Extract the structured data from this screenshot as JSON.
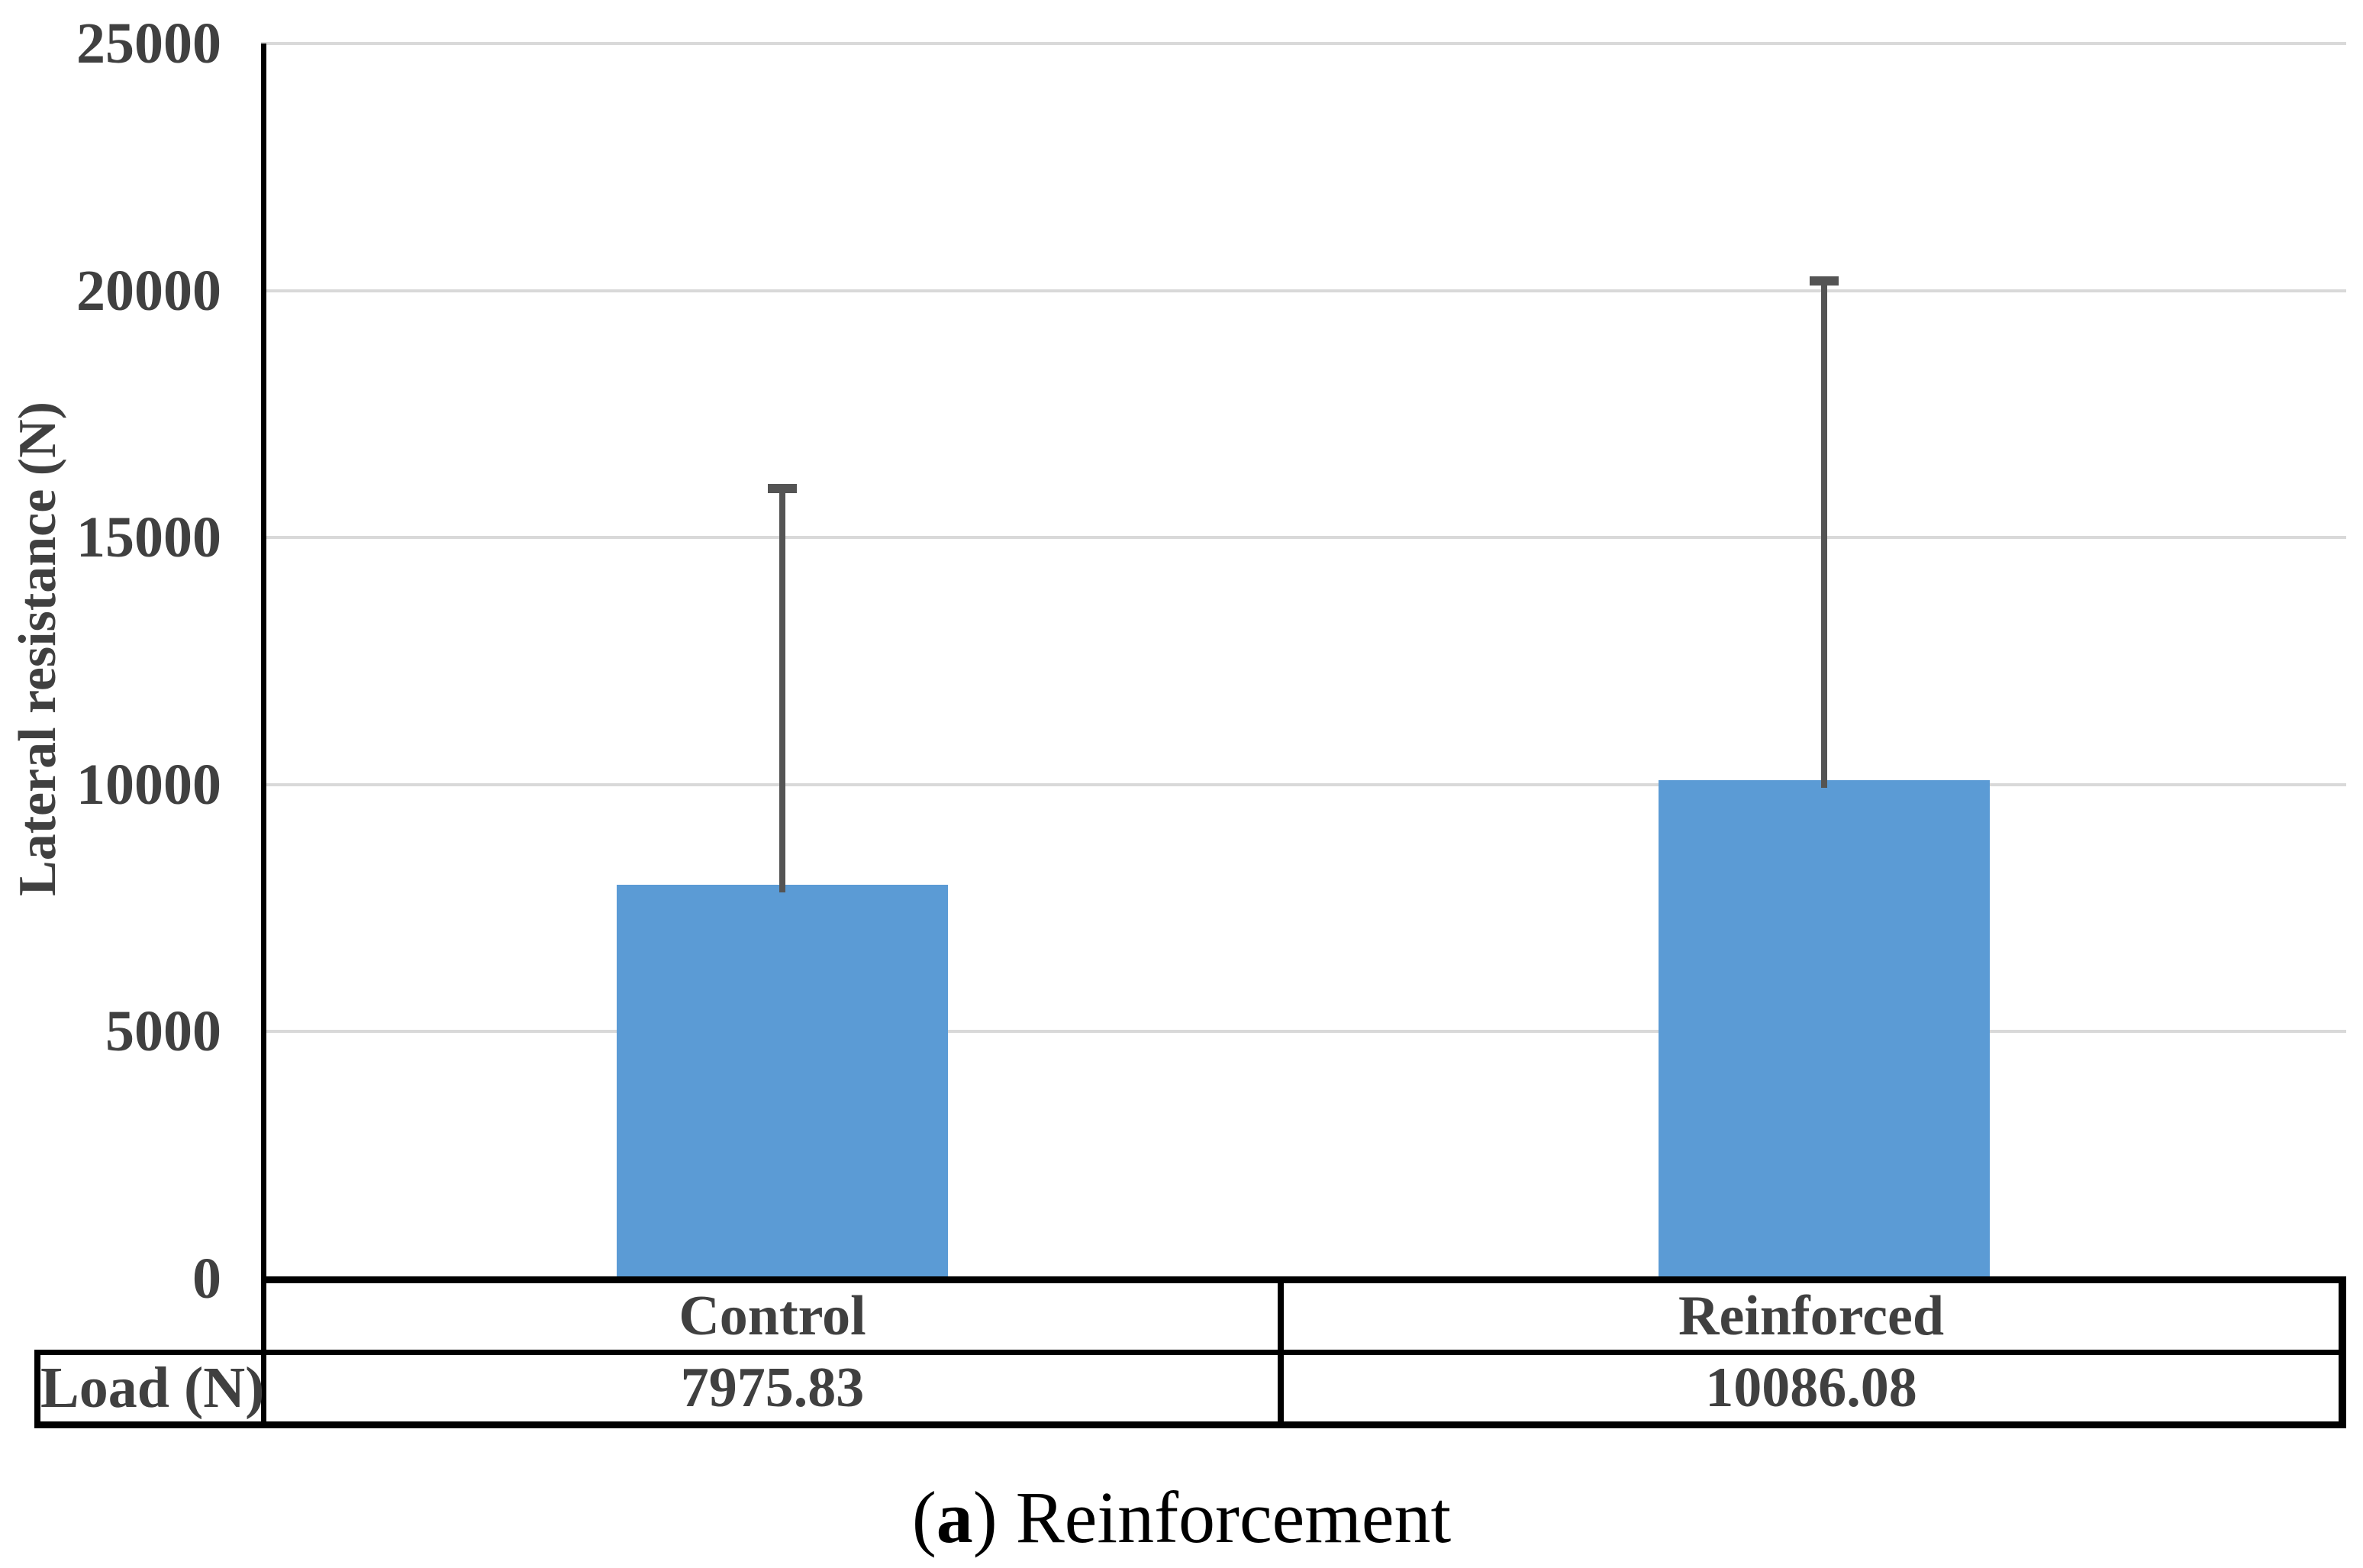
{
  "chart_data": {
    "type": "bar",
    "categories": [
      "Control",
      "Reinforced"
    ],
    "values": [
      7975.83,
      10086.08
    ],
    "error_whisker_tops": [
      15990,
      20190
    ],
    "ylabel": "Lateral resistance (N)",
    "ylim": [
      0,
      25000
    ],
    "yticks": [
      0,
      5000,
      10000,
      15000,
      20000,
      25000
    ],
    "ytick_labels": [
      "0",
      "5000",
      "10000",
      "15000",
      "20000",
      "25000"
    ],
    "grid": true,
    "legend_position": "none",
    "bar_color": "#5B9BD5",
    "error_bar_color": "#545454",
    "gridline_color": "#D9D9D9",
    "axis_text_color": "#404040"
  },
  "data_table": {
    "row_header": "Load (N)",
    "columns": [
      "Control",
      "Reinforced"
    ],
    "row_values": [
      "7975.83",
      "10086.08"
    ]
  },
  "caption": {
    "open": "(",
    "letter": "a",
    "close": ")",
    "text": "Reinforcement"
  }
}
